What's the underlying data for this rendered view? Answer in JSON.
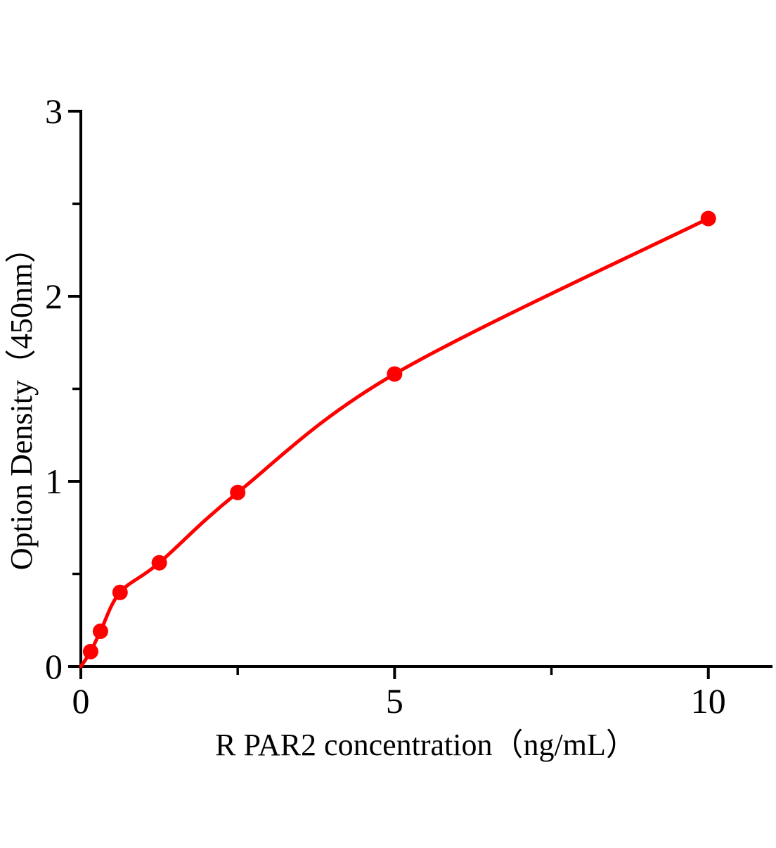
{
  "figure": {
    "background_color": "#ffffff",
    "xlabel": "R PAR2 concentration（ng/mL）",
    "ylabel": "Option Density（450nm）"
  },
  "chart_data": {
    "type": "scatter",
    "title": "",
    "xlabel": "R PAR2 concentration（ng/mL）",
    "ylabel": "Option Density（450nm）",
    "grid": false,
    "legend": null,
    "xlim": [
      0,
      11
    ],
    "ylim": [
      0,
      3
    ],
    "axes": {
      "x": {
        "min": 0,
        "max": 11,
        "ticks_major": [
          0,
          5,
          10
        ],
        "tick_labels": [
          "0",
          "5",
          "10"
        ],
        "ticks_minor": [
          2.5,
          7.5
        ]
      },
      "y": {
        "min": 0,
        "max": 3,
        "ticks_major": [
          0,
          1,
          2,
          3
        ],
        "tick_labels": [
          "0",
          "1",
          "2",
          "3"
        ],
        "ticks_minor": [
          0.5,
          1.5,
          2.5
        ]
      }
    },
    "points": [
      {
        "x": 0.156,
        "y": 0.08
      },
      {
        "x": 0.3125,
        "y": 0.19
      },
      {
        "x": 0.625,
        "y": 0.4
      },
      {
        "x": 1.25,
        "y": 0.56
      },
      {
        "x": 2.5,
        "y": 0.94
      },
      {
        "x": 5,
        "y": 1.58
      },
      {
        "x": 10,
        "y": 2.42
      }
    ],
    "curve": {
      "type": "smooth-fit",
      "start": {
        "x": 0,
        "y": 0
      }
    },
    "colors": {
      "curve": "#ff0000",
      "points": "#ff0000",
      "axis": "#000000",
      "text": "#000000"
    }
  }
}
